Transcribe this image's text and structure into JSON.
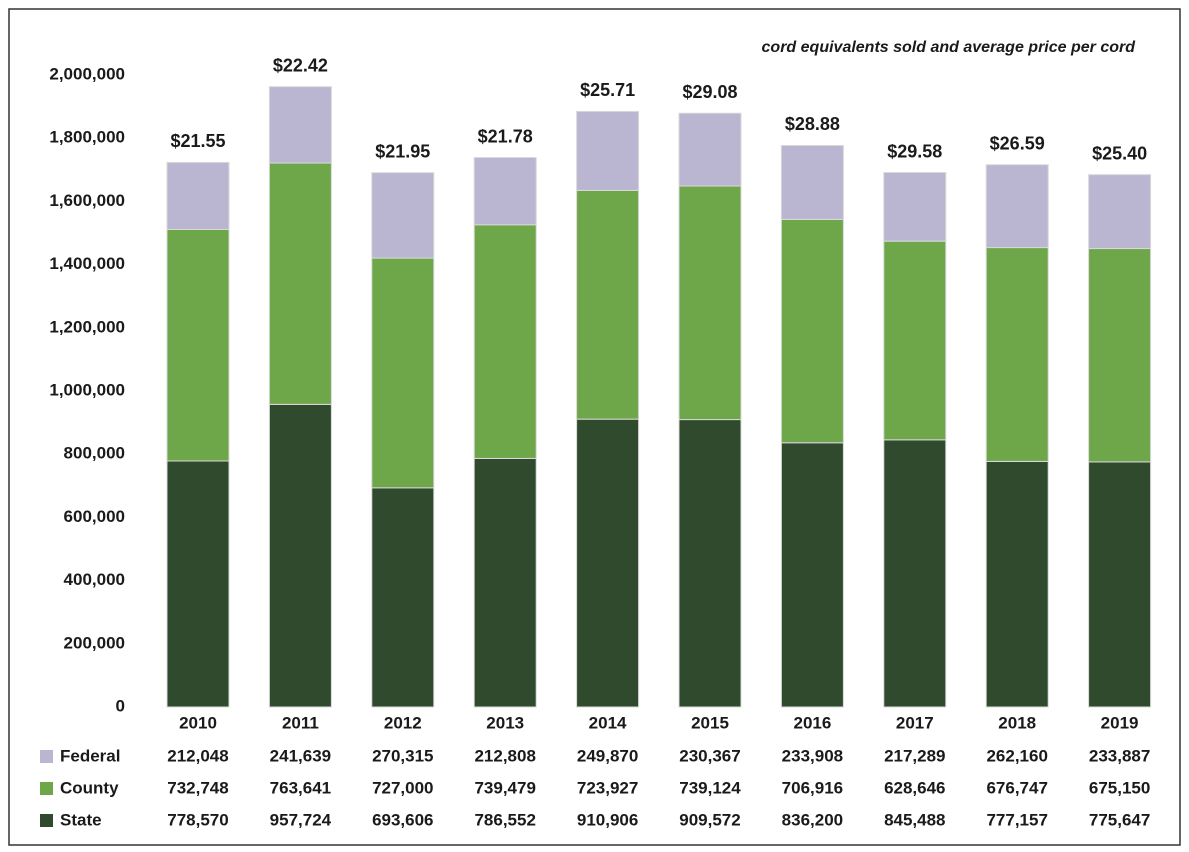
{
  "chart_data": {
    "type": "stacked-bar",
    "subtitle": "cord equivalents sold and average price per cord",
    "categories": [
      "2010",
      "2011",
      "2012",
      "2013",
      "2014",
      "2015",
      "2016",
      "2017",
      "2018",
      "2019"
    ],
    "series": [
      {
        "name": "State",
        "color": "#2f4a2c",
        "values": [
          778570,
          957724,
          693606,
          786552,
          910906,
          909572,
          836200,
          845488,
          777157,
          775647
        ],
        "value_labels": [
          "778,570",
          "957,724",
          "693,606",
          "786,552",
          "910,906",
          "909,572",
          "836,200",
          "845,488",
          "777,157",
          "775,647"
        ]
      },
      {
        "name": "County",
        "color": "#6ea64a",
        "values": [
          732748,
          763641,
          727000,
          739479,
          723927,
          739124,
          706916,
          628646,
          676747,
          675150
        ],
        "value_labels": [
          "732,748",
          "763,641",
          "727,000",
          "739,479",
          "723,927",
          "739,124",
          "706,916",
          "628,646",
          "676,747",
          "675,150"
        ]
      },
      {
        "name": "Federal",
        "color": "#bab6d1",
        "values": [
          212048,
          241639,
          270315,
          212808,
          249870,
          230367,
          233908,
          217289,
          262160,
          233887
        ],
        "value_labels": [
          "212,048",
          "241,639",
          "270,315",
          "212,808",
          "249,870",
          "230,367",
          "233,908",
          "217,289",
          "262,160",
          "233,887"
        ]
      }
    ],
    "prices": {
      "values": [
        21.55,
        22.42,
        21.95,
        21.78,
        25.71,
        29.08,
        28.88,
        29.58,
        26.59,
        25.4
      ],
      "value_labels": [
        "$21.55",
        "$22.42",
        "$21.95",
        "$21.78",
        "$25.71",
        "$29.08",
        "$28.88",
        "$29.58",
        "$26.59",
        "$25.40"
      ]
    },
    "ylim": [
      0,
      2000000
    ],
    "yticks": [
      0,
      {
        "value": 200000,
        "label": "200,000"
      },
      {
        "value": 400000,
        "label": "400,000"
      },
      {
        "value": 600000,
        "label": "600,000"
      },
      {
        "value": 800000,
        "label": "800,000"
      },
      {
        "value": 1000000,
        "label": "1,000,000"
      },
      {
        "value": 1200000,
        "label": "1,200,000"
      },
      {
        "value": 1400000,
        "label": "1,400,000"
      },
      {
        "value": 1600000,
        "label": "1,600,000"
      },
      {
        "value": 1800000,
        "label": "1,800,000"
      },
      {
        "value": 2000000,
        "label": "2,000,000"
      }
    ],
    "grid": false
  }
}
